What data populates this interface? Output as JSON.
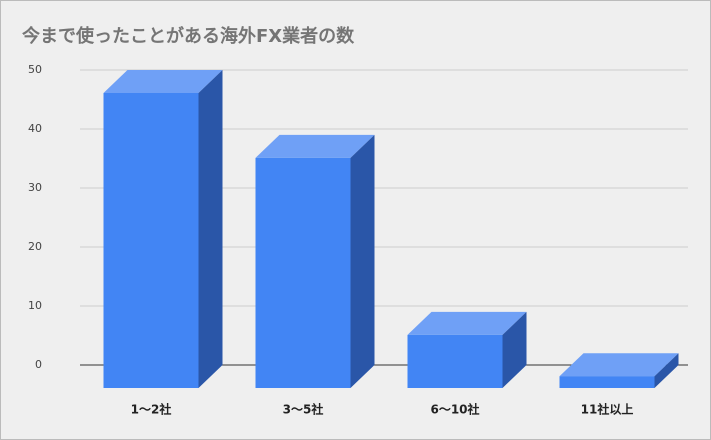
{
  "chart_data": {
    "type": "bar3d",
    "title": "今まで使ったことがある海外FX業者の数",
    "categories": [
      "1〜2社",
      "3〜5社",
      "6〜10社",
      "11社以上"
    ],
    "values": [
      50,
      39,
      9,
      2
    ],
    "color": "#4285f4",
    "ylim": [
      0,
      50
    ],
    "yticks": [
      0,
      10,
      20,
      30,
      40,
      50
    ],
    "grid": true
  }
}
